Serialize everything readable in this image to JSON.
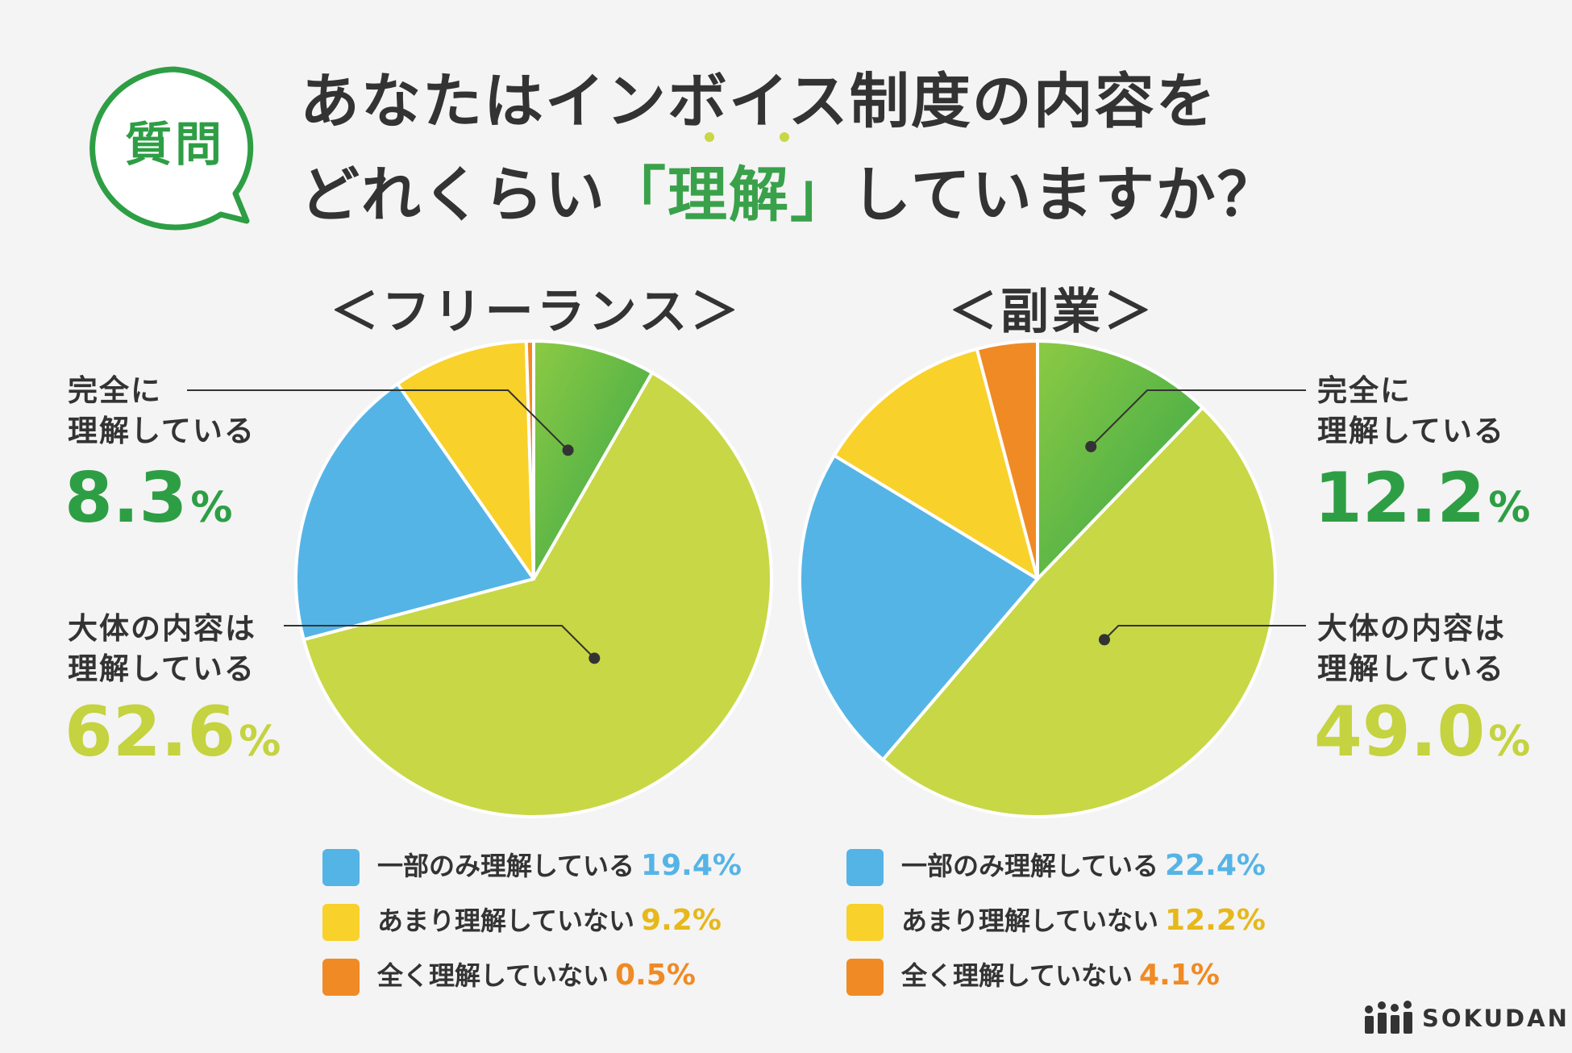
{
  "header": {
    "badge": "質問",
    "title_line1": "あなたはインボイス制度の内容を",
    "title_line2_pre": "どれくらい",
    "title_line2_hl": "「理解」",
    "title_line2_post": "していますか？"
  },
  "left_labels": {
    "full_l1": "完全に",
    "full_l2": "理解している",
    "full_num": "8.3",
    "general_l1": "大体の内容は",
    "general_l2": "理解している",
    "general_num": "62.6",
    "pct": "%"
  },
  "right_labels": {
    "full_l1": "完全に",
    "full_l2": "理解している",
    "full_num": "12.2",
    "general_l1": "大体の内容は",
    "general_l2": "理解している",
    "general_num": "49.0",
    "pct": "%"
  },
  "legend_left": [
    {
      "label": "一部のみ理解している",
      "value": "19.4%"
    },
    {
      "label": "あまり理解していない",
      "value": "9.2%"
    },
    {
      "label": "全く理解していない",
      "value": "0.5%"
    }
  ],
  "legend_right": [
    {
      "label": "一部のみ理解している",
      "value": "22.4%"
    },
    {
      "label": "あまり理解していない",
      "value": "12.2%"
    },
    {
      "label": "全く理解していない",
      "value": "4.1%"
    }
  ],
  "logo": "SOKUDAN",
  "colors": {
    "full": "#4db848",
    "general": "#c8d745",
    "partial": "#55b4e6",
    "little": "#f8d12b",
    "none": "#f08a24",
    "green_text": "#2e9e45",
    "lime_text": "#c4d33f",
    "blue_text": "#55b4e6",
    "yellow_text": "#e6b81a",
    "orange_text": "#f08a24"
  },
  "chart_data": [
    {
      "type": "pie",
      "title": "＜フリーランス＞",
      "categories": [
        "完全に理解している",
        "大体の内容は理解している",
        "一部のみ理解している",
        "あまり理解していない",
        "全く理解していない"
      ],
      "values": [
        8.3,
        62.6,
        19.4,
        9.2,
        0.5
      ]
    },
    {
      "type": "pie",
      "title": "＜副業＞",
      "categories": [
        "完全に理解している",
        "大体の内容は理解している",
        "一部のみ理解している",
        "あまり理解していない",
        "全く理解していない"
      ],
      "values": [
        12.2,
        49.0,
        22.4,
        12.2,
        4.1
      ]
    }
  ]
}
